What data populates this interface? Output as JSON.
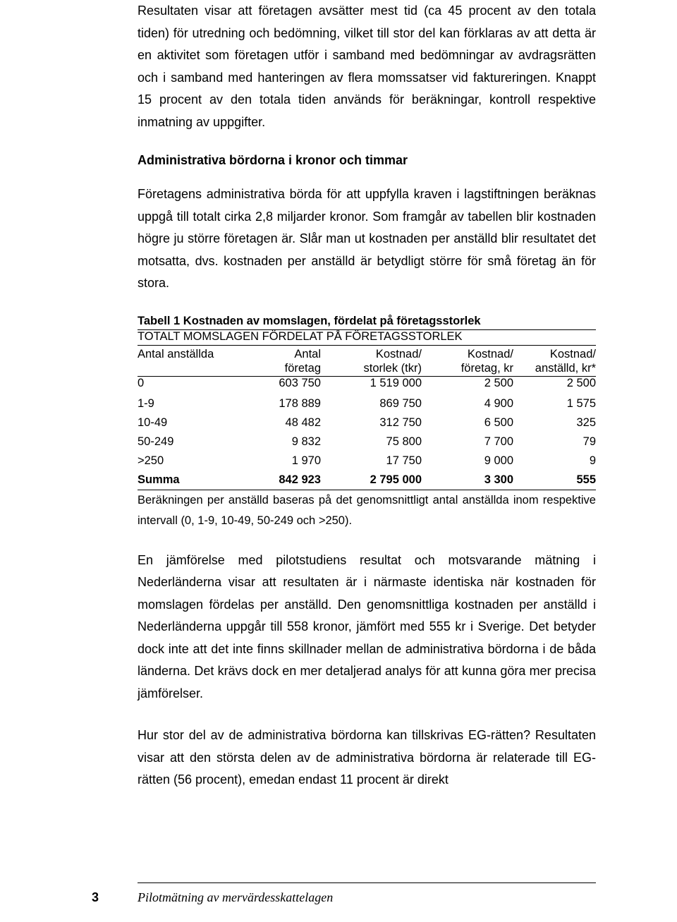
{
  "paragraphs": {
    "p1": "Resultaten visar att företagen avsätter mest tid (ca 45 procent av den totala tiden) för utredning och bedömning, vilket till stor del kan förklaras av att detta är en aktivitet som företagen utför i samband med bedömningar av avdragsrätten och i samband med hanteringen av flera momssatser vid faktureringen. Knappt 15 procent av den totala tiden används för beräkningar, kontroll respektive inmatning av uppgifter.",
    "p2": "Företagens administrativa börda för att uppfylla kraven i lagstiftningen beräknas uppgå till totalt cirka 2,8 miljarder kronor. Som framgår av tabellen blir kostnaden högre ju större företagen är. Slår man ut kostnaden per anställd blir resultatet det motsatta, dvs. kostnaden per anställd är betydligt större för små företag än för stora.",
    "p3": "En jämförelse med pilotstudiens resultat och motsvarande mätning i Nederländerna visar att resultaten är i närmaste identiska när kostnaden för momslagen fördelas per anställd. Den genomsnittliga kostnaden per anställd i Nederländerna uppgår till 558 kronor, jämfört med 555 kr i Sverige. Det betyder dock inte att det inte finns skillnader mellan de administrativa bördorna i de båda länderna. Det krävs dock en mer detaljerad analys för att kunna göra mer precisa jämförelser.",
    "p4": "Hur stor del av de administrativa bördorna kan tillskrivas EG-rätten? Resultaten visar att den största delen av de administrativa bördorna är relaterade till EG-rätten (56 procent), emedan endast 11 procent är direkt"
  },
  "heading1": "Administrativa bördorna i kronor och timmar",
  "table": {
    "caption": "Tabell 1 Kostnaden av momslagen, fördelat på företagsstorlek",
    "subheader": "TOTALT MOMSLAGEN FÖRDELAT PÅ FÖRETAGSSTORLEK",
    "columns": {
      "c1a": "Antal anställda",
      "c2a": "Antal",
      "c2b": "företag",
      "c3a": "Kostnad/",
      "c3b": "storlek (tkr)",
      "c4a": "Kostnad/",
      "c4b": "företag, kr",
      "c5a": "Kostnad/",
      "c5b": "anställd, kr*"
    },
    "rows": [
      {
        "c1": "0",
        "c2": "603 750",
        "c3": "1 519 000",
        "c4": "2 500",
        "c5": "2 500"
      },
      {
        "c1": "1-9",
        "c2": "178 889",
        "c3": "869 750",
        "c4": "4 900",
        "c5": "1 575"
      },
      {
        "c1": "10-49",
        "c2": "48 482",
        "c3": "312 750",
        "c4": "6 500",
        "c5": "325"
      },
      {
        "c1": "50-249",
        "c2": "9 832",
        "c3": "75 800",
        "c4": "7 700",
        "c5": "79"
      },
      {
        "c1": ">250",
        "c2": "1 970",
        "c3": "17 750",
        "c4": "9 000",
        "c5": "9"
      }
    ],
    "sum": {
      "c1": "Summa",
      "c2": "842 923",
      "c3": "2 795 000",
      "c4": "3 300",
      "c5": "555"
    },
    "note": "Beräkningen per anställd baseras på det genomsnittligt antal anställda inom respektive intervall (0, 1-9, 10-49, 50-249 och >250).",
    "col_widths": [
      "22%",
      "18%",
      "22%",
      "20%",
      "18%"
    ]
  },
  "footer": {
    "page_num": "3",
    "title": "Pilotmätning av mervärdesskattelagen"
  }
}
